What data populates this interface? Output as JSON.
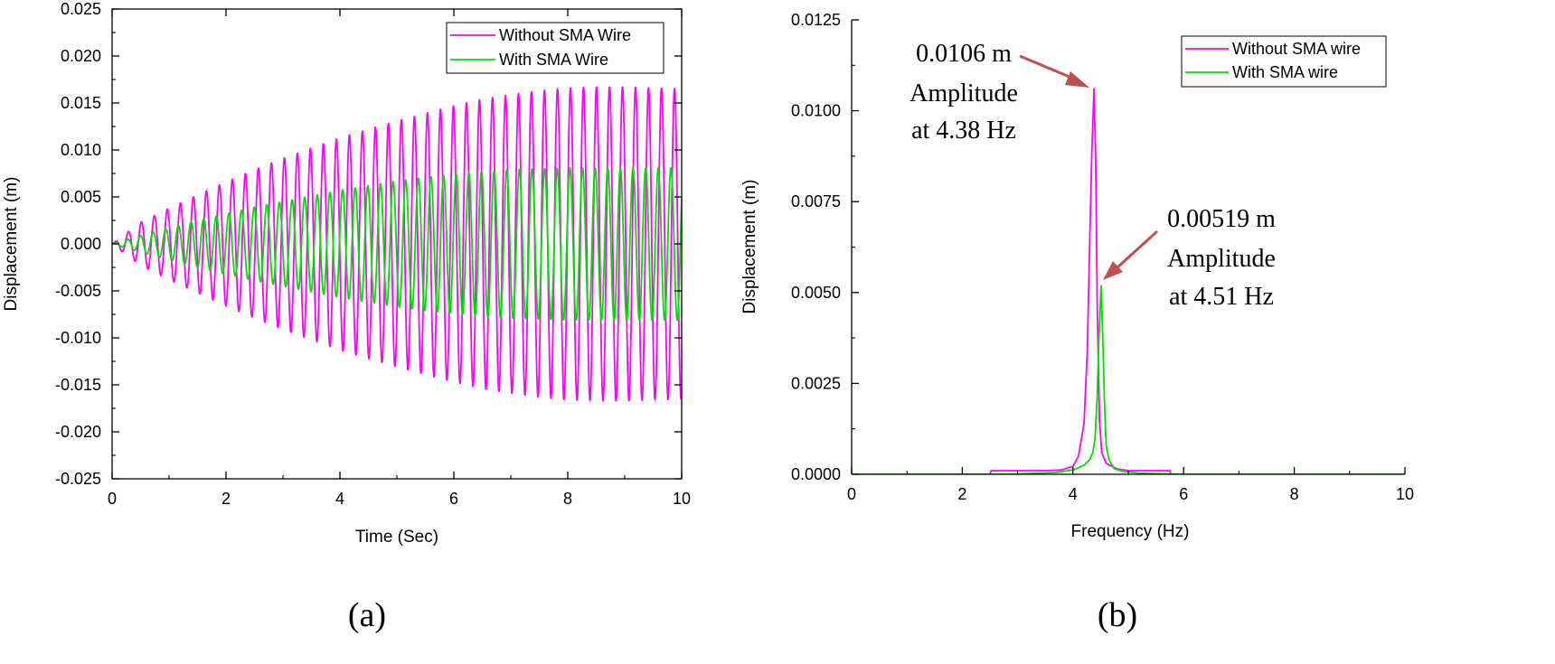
{
  "chart_data": [
    {
      "type": "line",
      "panel_label": "(a)",
      "xlabel": "Time (Sec)",
      "ylabel": "Displacement (m)",
      "xlim": [
        0,
        10
      ],
      "ylim": [
        -0.025,
        0.025
      ],
      "x_ticks": [
        0,
        2,
        4,
        6,
        8,
        10
      ],
      "x_tick_labels": [
        "0",
        "2",
        "4",
        "6",
        "8",
        "10"
      ],
      "y_ticks": [
        0.025,
        0.02,
        0.015,
        0.01,
        0.005,
        0.0,
        -0.005,
        -0.01,
        -0.015,
        -0.02,
        -0.025
      ],
      "y_tick_labels": [
        "0.025",
        "0.020",
        "0.015",
        "0.010",
        "0.005",
        "0.000",
        "-0.005",
        "-0.010",
        "-0.015",
        "-0.020",
        "-0.025"
      ],
      "grid": false,
      "legend_position": "top-right",
      "series": [
        {
          "name": "Without SMA Wire",
          "color": "#ff00ff",
          "frequency_hz": 4.38,
          "envelope": {
            "t": [
              0,
              0.5,
              1,
              1.5,
              2,
              2.5,
              3,
              3.5,
              4,
              4.5,
              5,
              5.5,
              6,
              6.5,
              7,
              7.5,
              8,
              8.5,
              9,
              9.5,
              10
            ],
            "amplitude": [
              0,
              0.0023,
              0.0038,
              0.0052,
              0.0066,
              0.0079,
              0.0091,
              0.0102,
              0.0113,
              0.0122,
              0.0131,
              0.0139,
              0.0147,
              0.0154,
              0.0159,
              0.0163,
              0.0166,
              0.0167,
              0.0167,
              0.0166,
              0.0165
            ]
          }
        },
        {
          "name": "With SMA Wire",
          "color": "#00e000",
          "frequency_hz": 4.51,
          "envelope": {
            "t": [
              0,
              0.5,
              1,
              1.5,
              2,
              2.5,
              3,
              3.5,
              4,
              4.5,
              5,
              5.5,
              6,
              6.5,
              7,
              7.5,
              8,
              8.5,
              9,
              9.5,
              10
            ],
            "amplitude": [
              0,
              0.0009,
              0.0017,
              0.0025,
              0.0032,
              0.0039,
              0.0045,
              0.0051,
              0.0057,
              0.0062,
              0.0067,
              0.0071,
              0.0074,
              0.0077,
              0.0079,
              0.008,
              0.0081,
              0.0081,
              0.0081,
              0.0081,
              0.0081
            ]
          }
        }
      ]
    },
    {
      "type": "line",
      "panel_label": "(b)",
      "xlabel": "Frequency (Hz)",
      "ylabel": "Displacement (m)",
      "xlim": [
        0,
        10
      ],
      "ylim": [
        0,
        0.0125
      ],
      "x_ticks": [
        0,
        2,
        4,
        6,
        8,
        10
      ],
      "x_tick_labels": [
        "0",
        "2",
        "4",
        "6",
        "8",
        "10"
      ],
      "y_ticks": [
        0.0125,
        0.01,
        0.0075,
        0.005,
        0.0025,
        0.0
      ],
      "y_tick_labels": [
        "0.0125",
        "0.0100",
        "0.0075",
        "0.0050",
        "0.0025",
        "0.0000"
      ],
      "grid": false,
      "legend_position": "top-right",
      "series": [
        {
          "name": "Without SMA wire",
          "color": "#ff00ff",
          "x": [
            0,
            2.5,
            2.52,
            3.5,
            3.8,
            4.0,
            4.1,
            4.2,
            4.26,
            4.3,
            4.34,
            4.38,
            4.41,
            4.44,
            4.48,
            4.52,
            4.6,
            4.8,
            5.0,
            5.5,
            5.75,
            5.77,
            10
          ],
          "y": [
            0,
            0,
            0.0001,
            0.0001,
            0.00012,
            0.00022,
            0.0005,
            0.0014,
            0.0034,
            0.0062,
            0.0088,
            0.0106,
            0.0088,
            0.0045,
            0.0015,
            0.0006,
            0.0003,
            0.00015,
            0.0001,
            0.0001,
            0.0001,
            0,
            0
          ]
        },
        {
          "name": "With SMA wire",
          "color": "#00e000",
          "x": [
            0,
            2.8,
            3.7,
            4.0,
            4.2,
            4.3,
            4.36,
            4.4,
            4.44,
            4.47,
            4.51,
            4.54,
            4.57,
            4.6,
            4.65,
            4.75,
            4.9,
            5.2,
            6.0,
            10
          ],
          "y": [
            0,
            0,
            5e-05,
            0.00012,
            0.00025,
            0.0004,
            0.0006,
            0.001,
            0.0022,
            0.0038,
            0.00519,
            0.0037,
            0.002,
            0.0008,
            0.0004,
            0.00015,
            8e-05,
            3e-05,
            0,
            0
          ]
        }
      ],
      "annotations": [
        {
          "lines": [
            "0.0106 m",
            "Amplitude",
            "at 4.38 Hz"
          ],
          "target": [
            4.38,
            0.0106
          ]
        },
        {
          "lines": [
            "0.00519 m",
            "Amplitude",
            "at 4.51 Hz"
          ],
          "target": [
            4.51,
            0.00519
          ]
        }
      ]
    }
  ]
}
